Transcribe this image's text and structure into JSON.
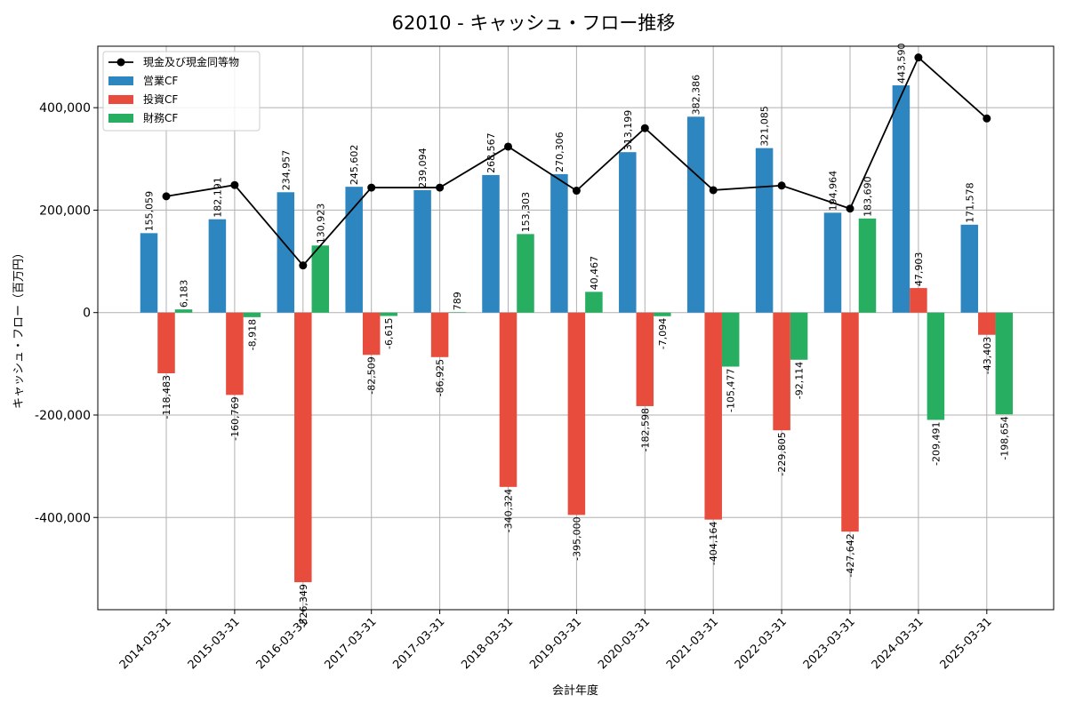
{
  "chart_data": {
    "type": "bar",
    "title": "62010 - キャッシュ・フロー推移",
    "xlabel": "会計年度",
    "ylabel": "キャッシュ・フロー（百万円）",
    "ylim": [
      -580000,
      520000
    ],
    "yticks": [
      -400000,
      -200000,
      0,
      200000,
      400000
    ],
    "ytick_labels": [
      "-400,000",
      "-200,000",
      "0",
      "200,000",
      "400,000"
    ],
    "grid": true,
    "legend_position": "top-left",
    "categories": [
      "2014-03-31",
      "2015-03-31",
      "2016-03-31",
      "2017-03-31",
      "2017-03-31",
      "2018-03-31",
      "2019-03-31",
      "2020-03-31",
      "2021-03-31",
      "2022-03-31",
      "2023-03-31",
      "2024-03-31",
      "2025-03-31"
    ],
    "series": [
      {
        "name": "営業CF",
        "type": "bar",
        "color": "#2e86c1",
        "values": [
          155059,
          182191,
          234957,
          245602,
          239094,
          268567,
          270306,
          313199,
          382386,
          321085,
          194964,
          443590,
          171578
        ],
        "labels": [
          "155,059",
          "182,191",
          "234,957",
          "245,602",
          "239,094",
          "268,567",
          "270,306",
          "313,199",
          "382,386",
          "321,085",
          "194,964",
          "443,590",
          "171,578"
        ]
      },
      {
        "name": "投資CF",
        "type": "bar",
        "color": "#e74c3c",
        "values": [
          -118483,
          -160769,
          -526349,
          -82509,
          -86925,
          -340324,
          -395000,
          -182598,
          -404164,
          -229805,
          -427642,
          47903,
          -43403
        ],
        "labels": [
          "-118,483",
          "-160,769",
          "-526,349",
          "-82,509",
          "-86,925",
          "-340,324",
          "-395,000",
          "-182,598",
          "-404,164",
          "-229,805",
          "-427,642",
          "47,903",
          "-43,403"
        ]
      },
      {
        "name": "財務CF",
        "type": "bar",
        "color": "#27ae60",
        "values": [
          6183,
          -8918,
          130923,
          -6615,
          789,
          153303,
          40467,
          -7094,
          -105477,
          -92114,
          183690,
          -209491,
          -198654
        ],
        "labels": [
          "6,183",
          "-8,918",
          "130,923",
          "-6,615",
          "789",
          "153,303",
          "40,467",
          "-7,094",
          "-105,477",
          "-92,114",
          "183,690",
          "-209,491",
          "-198,654"
        ]
      },
      {
        "name": "現金及び現金同等物",
        "type": "line",
        "color": "#000000",
        "values": [
          227000,
          249000,
          92000,
          244000,
          244000,
          324000,
          238000,
          360000,
          239000,
          248000,
          203000,
          498000,
          379000
        ]
      }
    ]
  }
}
